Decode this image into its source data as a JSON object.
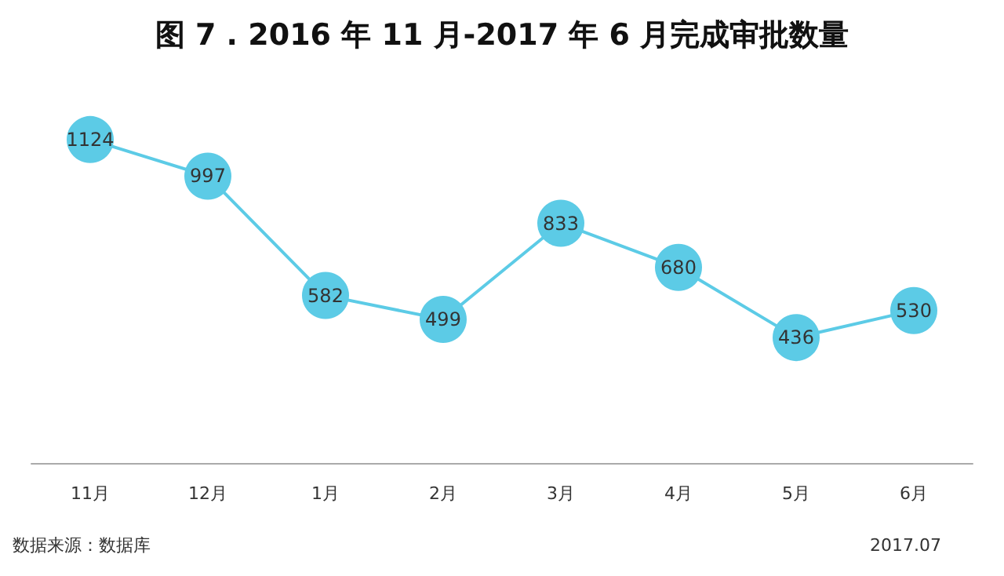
{
  "chart_data": {
    "type": "line",
    "title": "图 7 . 2016 年 11 月-2017 年 6 月完成审批数量",
    "categories": [
      "11月",
      "12月",
      "1月",
      "2月",
      "3月",
      "4月",
      "5月",
      "6月"
    ],
    "series": [
      {
        "color": "#5ccbe6",
        "values": [
          1124,
          997,
          582,
          499,
          833,
          680,
          436,
          530
        ]
      }
    ],
    "data_labels": true,
    "marker": "circle",
    "line_style": "solid",
    "grid": false,
    "annotations": [
      "数据来源：数据库",
      "2017.07"
    ]
  }
}
